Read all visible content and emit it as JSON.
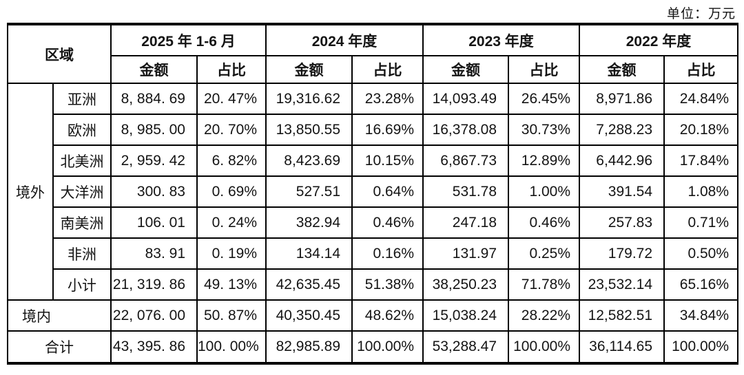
{
  "unit_label": "单位：万元",
  "colors": {
    "text": "#141414",
    "border": "#000000",
    "background": "#ffffff"
  },
  "table": {
    "region_header": "区域",
    "periods": [
      {
        "label": "2025 年 1-6 月",
        "amount_label": "金额",
        "ratio_label": "占比"
      },
      {
        "label": "2024 年度",
        "amount_label": "金额",
        "ratio_label": "占比"
      },
      {
        "label": "2023 年度",
        "amount_label": "金额",
        "ratio_label": "占比"
      },
      {
        "label": "2022 年度",
        "amount_label": "金额",
        "ratio_label": "占比"
      }
    ],
    "overseas_group_label": "境外",
    "rows": [
      {
        "label": "亚洲",
        "values": [
          "8, 884. 69",
          "20. 47%",
          "19,316.62",
          "23.28%",
          "14,093.49",
          "26.45%",
          "8,971.86",
          "24.84%"
        ]
      },
      {
        "label": "欧洲",
        "values": [
          "8, 985. 00",
          "20. 70%",
          "13,850.55",
          "16.69%",
          "16,378.08",
          "30.73%",
          "7,288.23",
          "20.18%"
        ]
      },
      {
        "label": "北美洲",
        "values": [
          "2, 959. 42",
          "6. 82%",
          "8,423.69",
          "10.15%",
          "6,867.73",
          "12.89%",
          "6,442.96",
          "17.84%"
        ]
      },
      {
        "label": "大洋洲",
        "values": [
          "300. 83",
          "0. 69%",
          "527.51",
          "0.64%",
          "531.78",
          "1.00%",
          "391.54",
          "1.08%"
        ]
      },
      {
        "label": "南美洲",
        "values": [
          "106. 01",
          "0. 24%",
          "382.94",
          "0.46%",
          "247.18",
          "0.46%",
          "257.83",
          "0.71%"
        ]
      },
      {
        "label": "非洲",
        "values": [
          "83. 91",
          "0. 19%",
          "134.14",
          "0.16%",
          "131.97",
          "0.25%",
          "179.72",
          "0.50%"
        ]
      },
      {
        "label": "小计",
        "values": [
          "21, 319. 86",
          "49. 13%",
          "42,635.45",
          "51.38%",
          "38,250.23",
          "71.78%",
          "23,532.14",
          "65.16%"
        ]
      }
    ],
    "domestic": {
      "label": "境内",
      "values": [
        "22, 076. 00",
        "50. 87%",
        "40,350.45",
        "48.62%",
        "15,038.24",
        "28.22%",
        "12,582.51",
        "34.84%"
      ]
    },
    "total": {
      "label": "合计",
      "values": [
        "43, 395. 86",
        "100. 00%",
        "82,985.89",
        "100.00%",
        "53,288.47",
        "100.00%",
        "36,114.65",
        "100.00%"
      ]
    }
  }
}
